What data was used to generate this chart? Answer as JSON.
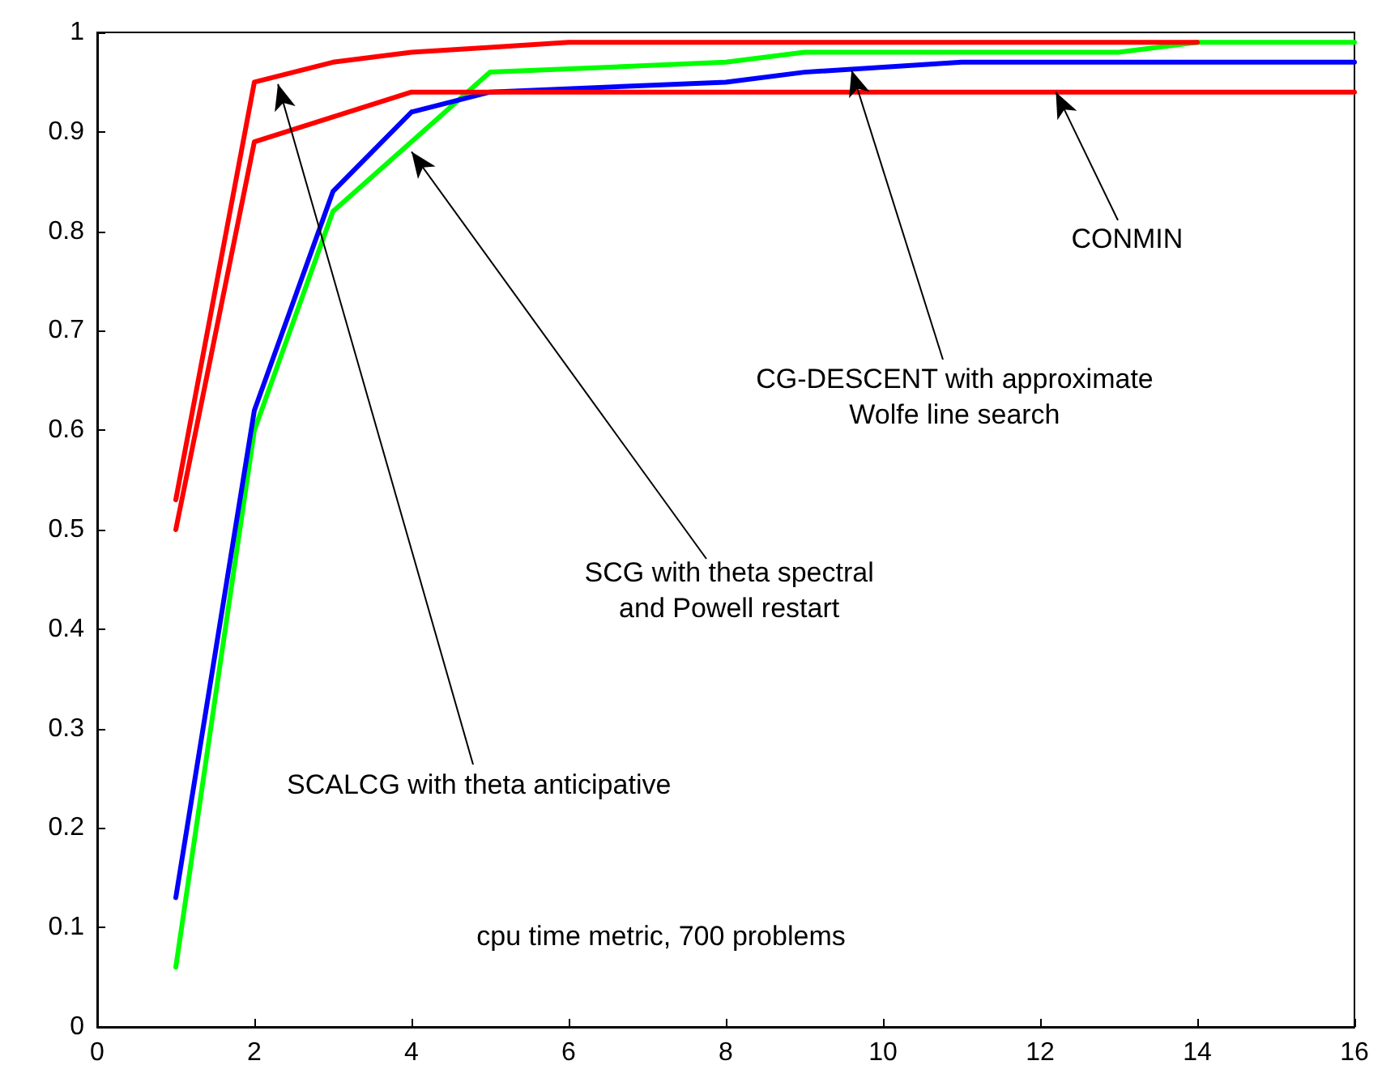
{
  "chart_data": {
    "type": "line",
    "xlim": [
      0,
      16
    ],
    "xticks": [
      0,
      2,
      4,
      6,
      8,
      10,
      12,
      14,
      16
    ],
    "ylim": [
      0,
      1
    ],
    "yticks": [
      0,
      0.1,
      0.2,
      0.3,
      0.4,
      0.5,
      0.6,
      0.7,
      0.8,
      0.9,
      1
    ],
    "grid": false,
    "marker": "none",
    "line_style": "solid",
    "series": [
      {
        "color": "#00ff00",
        "x": [
          1,
          2,
          3,
          4,
          5,
          8,
          9,
          13,
          14,
          16
        ],
        "values": [
          0.06,
          0.6,
          0.82,
          0.89,
          0.96,
          0.97,
          0.98,
          0.98,
          0.99,
          0.99
        ]
      },
      {
        "color": "#0000ff",
        "x": [
          1,
          2,
          3,
          4,
          5,
          8,
          9,
          11,
          16
        ],
        "values": [
          0.13,
          0.62,
          0.84,
          0.92,
          0.94,
          0.95,
          0.96,
          0.97,
          0.97
        ]
      },
      {
        "color": "#ff0000",
        "x": [
          1,
          2,
          4,
          6,
          16
        ],
        "values": [
          0.5,
          0.89,
          0.94,
          0.94,
          0.94
        ]
      },
      {
        "color": "#ff0000",
        "x": [
          1,
          2,
          3,
          4,
          5,
          6,
          14
        ],
        "values": [
          0.53,
          0.95,
          0.97,
          0.98,
          0.985,
          0.99,
          0.99
        ]
      }
    ],
    "annotations": [
      {
        "text": "CONMIN",
        "x": 12.2,
        "y": 0.94
      },
      {
        "text": "CG-DESCENT with approximate\nWolfe line search",
        "x": 9.6,
        "y": 0.962
      },
      {
        "text": "SCG with theta spectral\nand Powell restart",
        "x": 4.0,
        "y": 0.88
      },
      {
        "text": "SCALCG with theta anticipative",
        "x": 2.3,
        "y": 0.948
      },
      "cpu time metric, 700 problems"
    ]
  }
}
